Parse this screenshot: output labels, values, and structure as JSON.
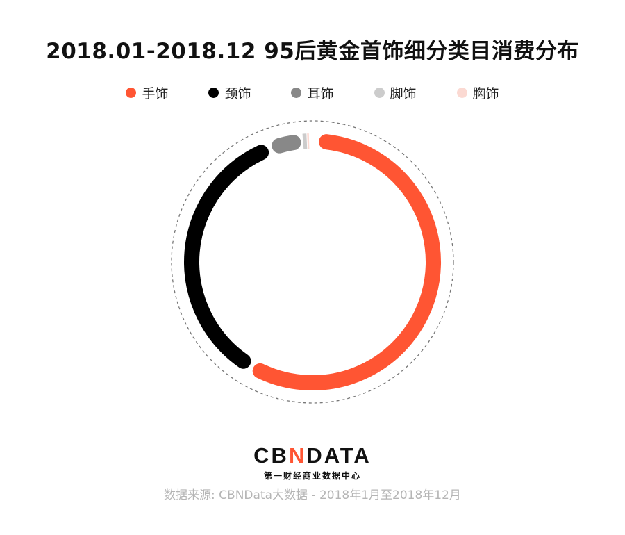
{
  "chart_data": {
    "type": "pie",
    "variant": "donut",
    "title": "2018.01-2018.12 95后黄金首饰细分类目消费分布",
    "legend_position": "top",
    "categories": [
      "手饰",
      "颈饰",
      "耳饰",
      "脚饰",
      "胸饰"
    ],
    "values": [
      58.5,
      36.3,
      4.5,
      0.5,
      0.2
    ],
    "unit": "%",
    "colors": [
      "#ff5533",
      "#000000",
      "#888888",
      "#cccccc",
      "#fbd9d2"
    ]
  },
  "logo": {
    "text_a": "CB",
    "text_x": "N",
    "text_b": "DATA",
    "subtitle": "第一财经商业数据中心"
  },
  "source": "数据来源: CBNData大数据 - 2018年1月至2018年12月"
}
